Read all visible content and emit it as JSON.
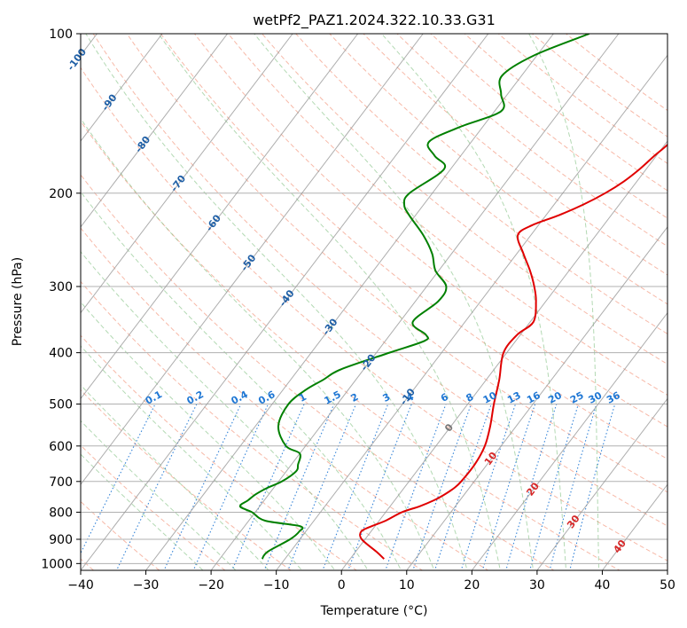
{
  "chart_data": {
    "type": "line",
    "title": "wetPf2_PAZ1.2024.322.10.33.G31",
    "xlabel": "Temperature (°C)",
    "ylabel": "Pressure (hPa)",
    "xlim": [
      -40,
      50
    ],
    "ylim": [
      1030,
      100
    ],
    "y_scale": "log",
    "grid": true,
    "x_ticks": [
      -40,
      -30,
      -20,
      -10,
      0,
      10,
      20,
      30,
      40,
      50
    ],
    "x_tick_labels": [
      "−40",
      "−30",
      "−20",
      "−10",
      "0",
      "10",
      "20",
      "30",
      "40",
      "50"
    ],
    "y_ticks": [
      100,
      200,
      300,
      400,
      500,
      600,
      700,
      800,
      900,
      1000
    ],
    "colors": {
      "temperature": "#e00000",
      "dewpoint": "#008000",
      "isotherm": "#999999",
      "dry_adiabat": "#f08060",
      "moist_adiabat": "#80c080",
      "mixing_ratio": "#1f77d4",
      "frame": "#000000"
    },
    "series": [
      {
        "color": "temperature",
        "pressure": [
          980,
          950,
          900,
          870,
          850,
          830,
          800,
          780,
          760,
          740,
          720,
          700,
          650,
          600,
          550,
          500,
          450,
          400,
          370,
          350,
          320,
          300,
          280,
          260,
          240,
          230,
          220,
          210,
          200,
          190,
          180,
          170,
          160,
          150,
          140,
          130,
          120,
          110,
          100
        ],
        "temperature": [
          5.2,
          3.2,
          -0.5,
          -1.5,
          -0.5,
          1.0,
          2.5,
          4.5,
          6.0,
          7.0,
          7.7,
          8.0,
          8.1,
          7.5,
          6.0,
          4.0,
          2.0,
          -0.5,
          -0.5,
          0.5,
          -1.5,
          -3.5,
          -6.0,
          -9.0,
          -12.0,
          -11.0,
          -8.0,
          -5.5,
          -3.5,
          -2.0,
          -1.0,
          -0.3,
          0.5,
          0.0,
          -0.5,
          0.0,
          0.8,
          0.0,
          -1.5
        ]
      },
      {
        "color": "dewpoint",
        "pressure": [
          980,
          950,
          900,
          870,
          850,
          830,
          800,
          780,
          760,
          740,
          720,
          700,
          670,
          650,
          620,
          600,
          550,
          500,
          470,
          450,
          430,
          400,
          380,
          370,
          350,
          320,
          300,
          280,
          260,
          240,
          220,
          210,
          200,
          180,
          170,
          160,
          150,
          140,
          130,
          120,
          110,
          100
        ],
        "temperature": [
          -13.5,
          -13.5,
          -11.5,
          -11.0,
          -11.5,
          -17.5,
          -20.5,
          -23.0,
          -22.5,
          -22.0,
          -21.0,
          -19.5,
          -18.5,
          -19.0,
          -20.0,
          -23.0,
          -26.5,
          -27.5,
          -26.5,
          -25.0,
          -23.5,
          -18.0,
          -14.0,
          -14.5,
          -18.0,
          -16.5,
          -17.0,
          -20.5,
          -23.0,
          -26.5,
          -31.0,
          -33.0,
          -33.5,
          -31.0,
          -34.0,
          -36.5,
          -33.5,
          -29.0,
          -31.0,
          -33.0,
          -30.5,
          -24.5
        ]
      }
    ],
    "isotherm_labels": [
      "-100",
      "-90",
      "-80",
      "-70",
      "-60",
      "-50",
      "-40",
      "-30",
      "-20",
      "-10",
      "0",
      "10",
      "20",
      "30",
      "40"
    ],
    "mixing_ratio_labels": [
      "0.1",
      "0.2",
      "0.4",
      "0.6",
      "1",
      "1.5",
      "2",
      "3",
      "4",
      "6",
      "8",
      "10",
      "13",
      "16",
      "20",
      "25",
      "30",
      "36"
    ],
    "mixing_ratio_values": [
      0.1,
      0.2,
      0.4,
      0.6,
      1,
      1.5,
      2,
      3,
      4,
      6,
      8,
      10,
      13,
      16,
      20,
      25,
      30,
      36
    ]
  }
}
